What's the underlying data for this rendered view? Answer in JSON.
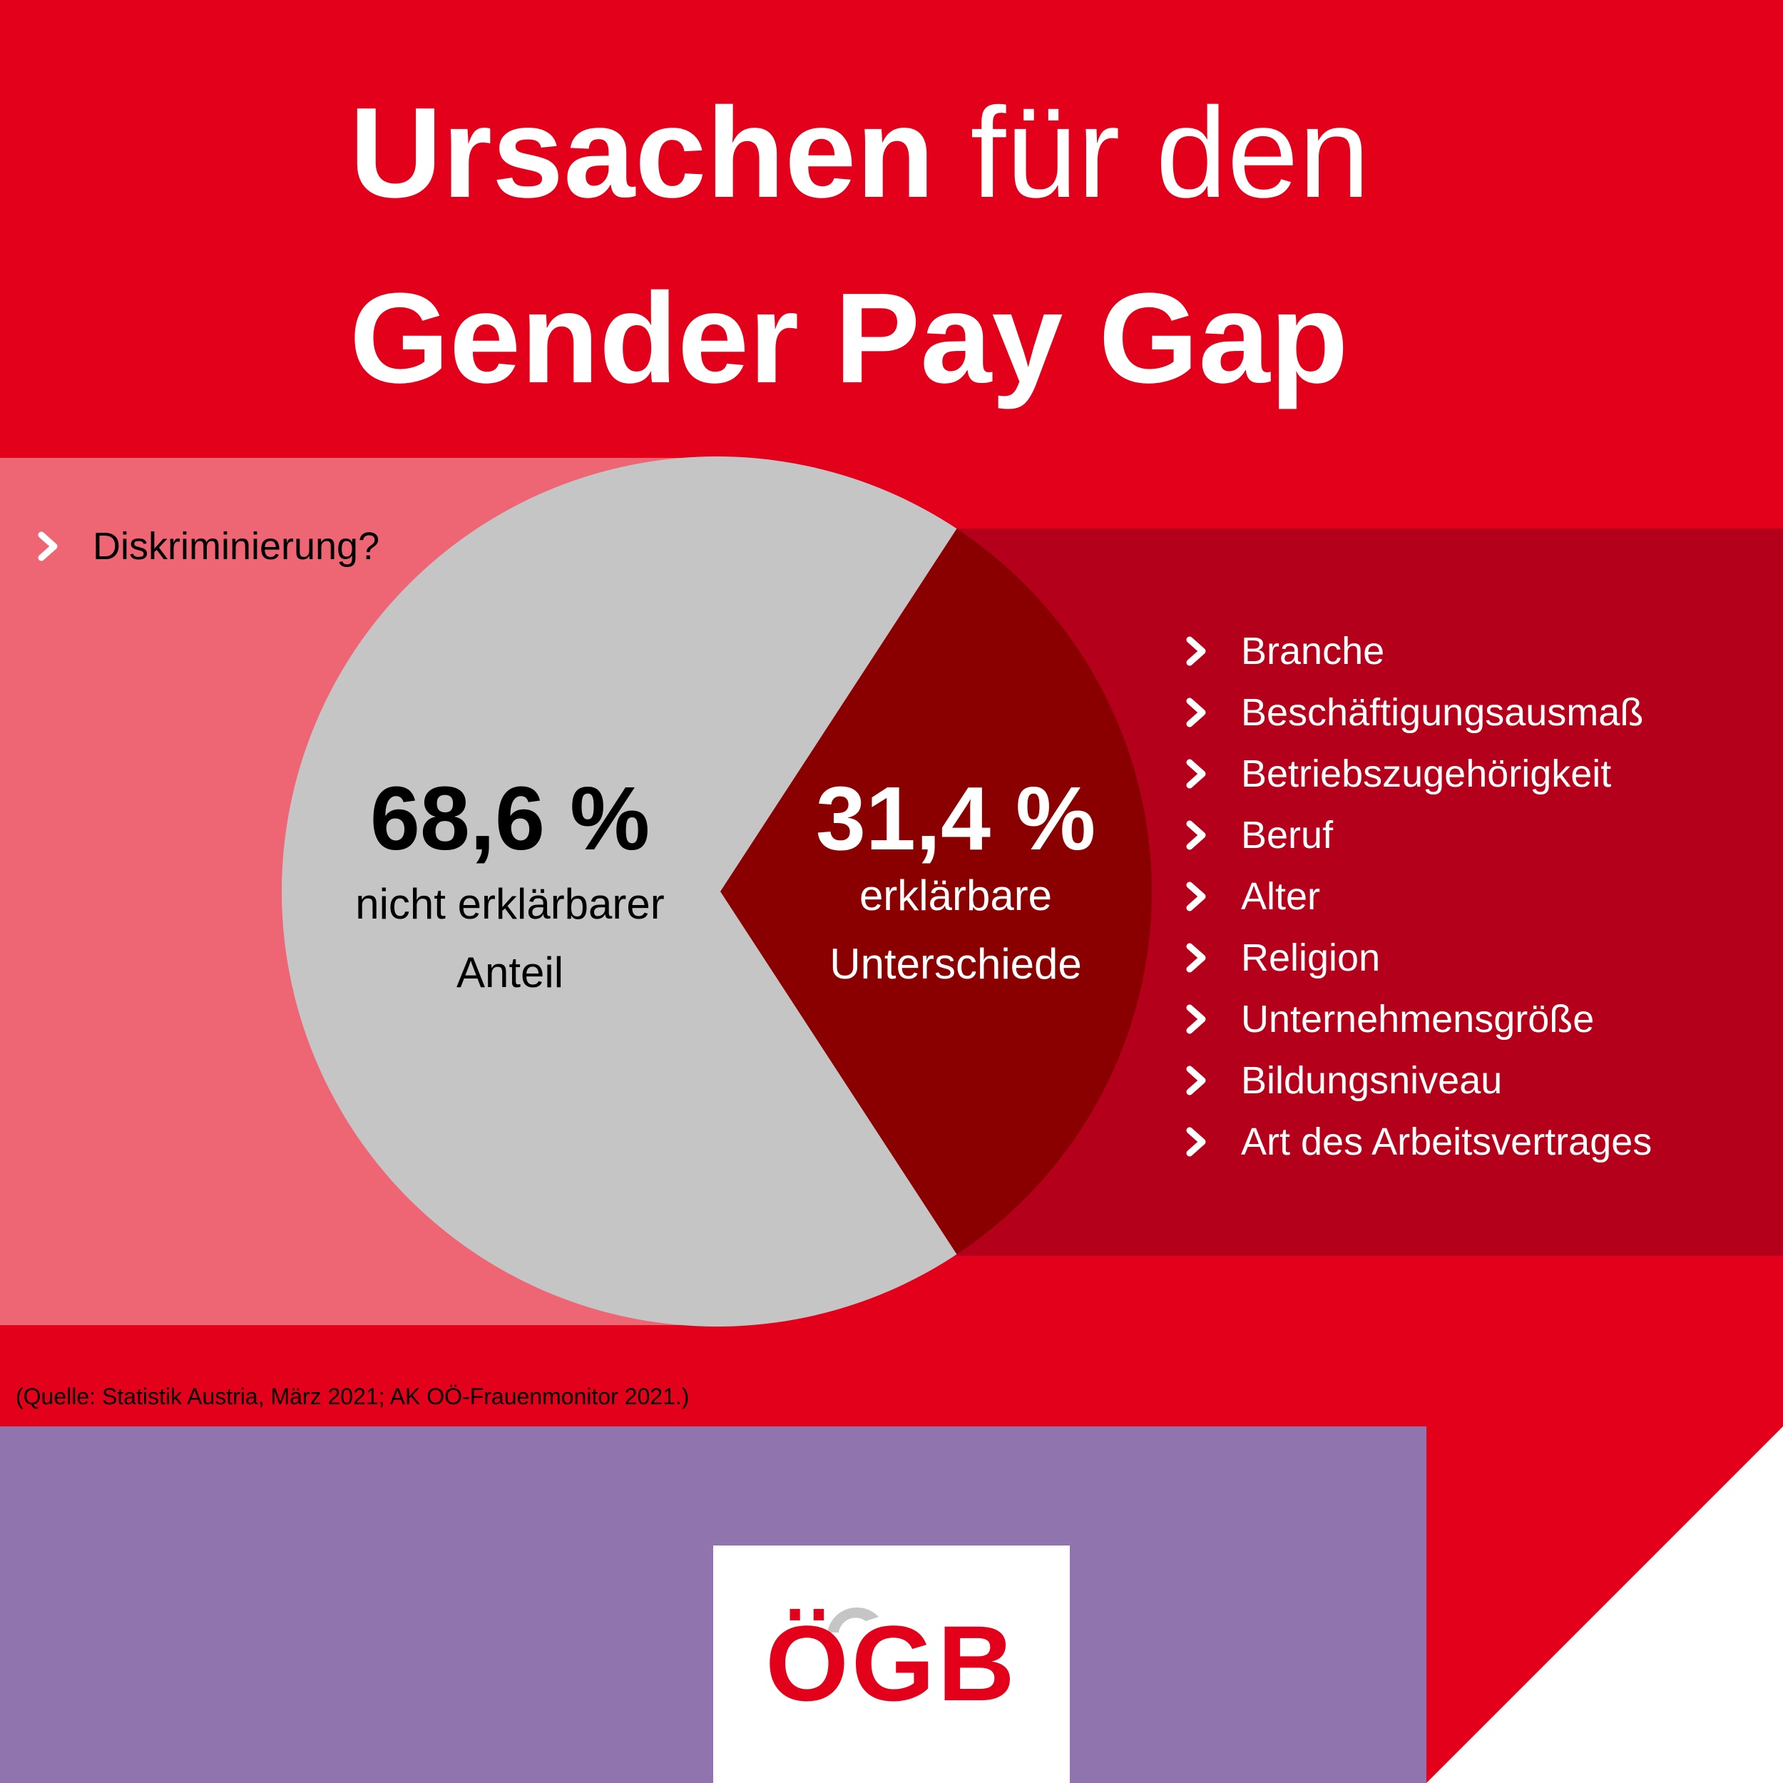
{
  "title": {
    "line1_bold": "Ursachen",
    "line1_rest": "für den",
    "line2": "Gender Pay Gap"
  },
  "colors": {
    "background": "#e2001a",
    "left_panel": "#ee6574",
    "right_panel": "#b5001b",
    "bottom_panel": "#8f74ad",
    "slice_unexplained": "#c5c5c5",
    "slice_explained": "#8a0000",
    "logo": "#e2001a"
  },
  "chart_data": {
    "type": "pie",
    "title": "Ursachen für den Gender Pay Gap",
    "slices": [
      {
        "label": "nicht erklärbarer Anteil",
        "value": 68.6,
        "value_label": "68,6 %",
        "color": "#c5c5c5"
      },
      {
        "label": "erklärbare Unterschiede",
        "value": 31.4,
        "value_label": "31,4 %",
        "color": "#8a0000"
      }
    ]
  },
  "unexplained": {
    "value": "68,6 %",
    "desc_line1": "nicht erklärbarer",
    "desc_line2": "Anteil",
    "reasons": [
      "Diskriminierung?"
    ]
  },
  "explained": {
    "value": "31,4 %",
    "desc_line1": "erklärbare",
    "desc_line2": "Unterschiede",
    "factors": [
      "Branche",
      "Beschäftigungsausmaß",
      "Betriebszugehörigkeit",
      "Beruf",
      "Alter",
      "Religion",
      "Unternehmensgröße",
      "Bildungsniveau",
      "Art des Arbeitsvertrages"
    ]
  },
  "source": "(Quelle: Statistik Austria, März 2021; AK OÖ-Frauenmonitor 2021.)",
  "logo": {
    "text": "ÖGB"
  }
}
